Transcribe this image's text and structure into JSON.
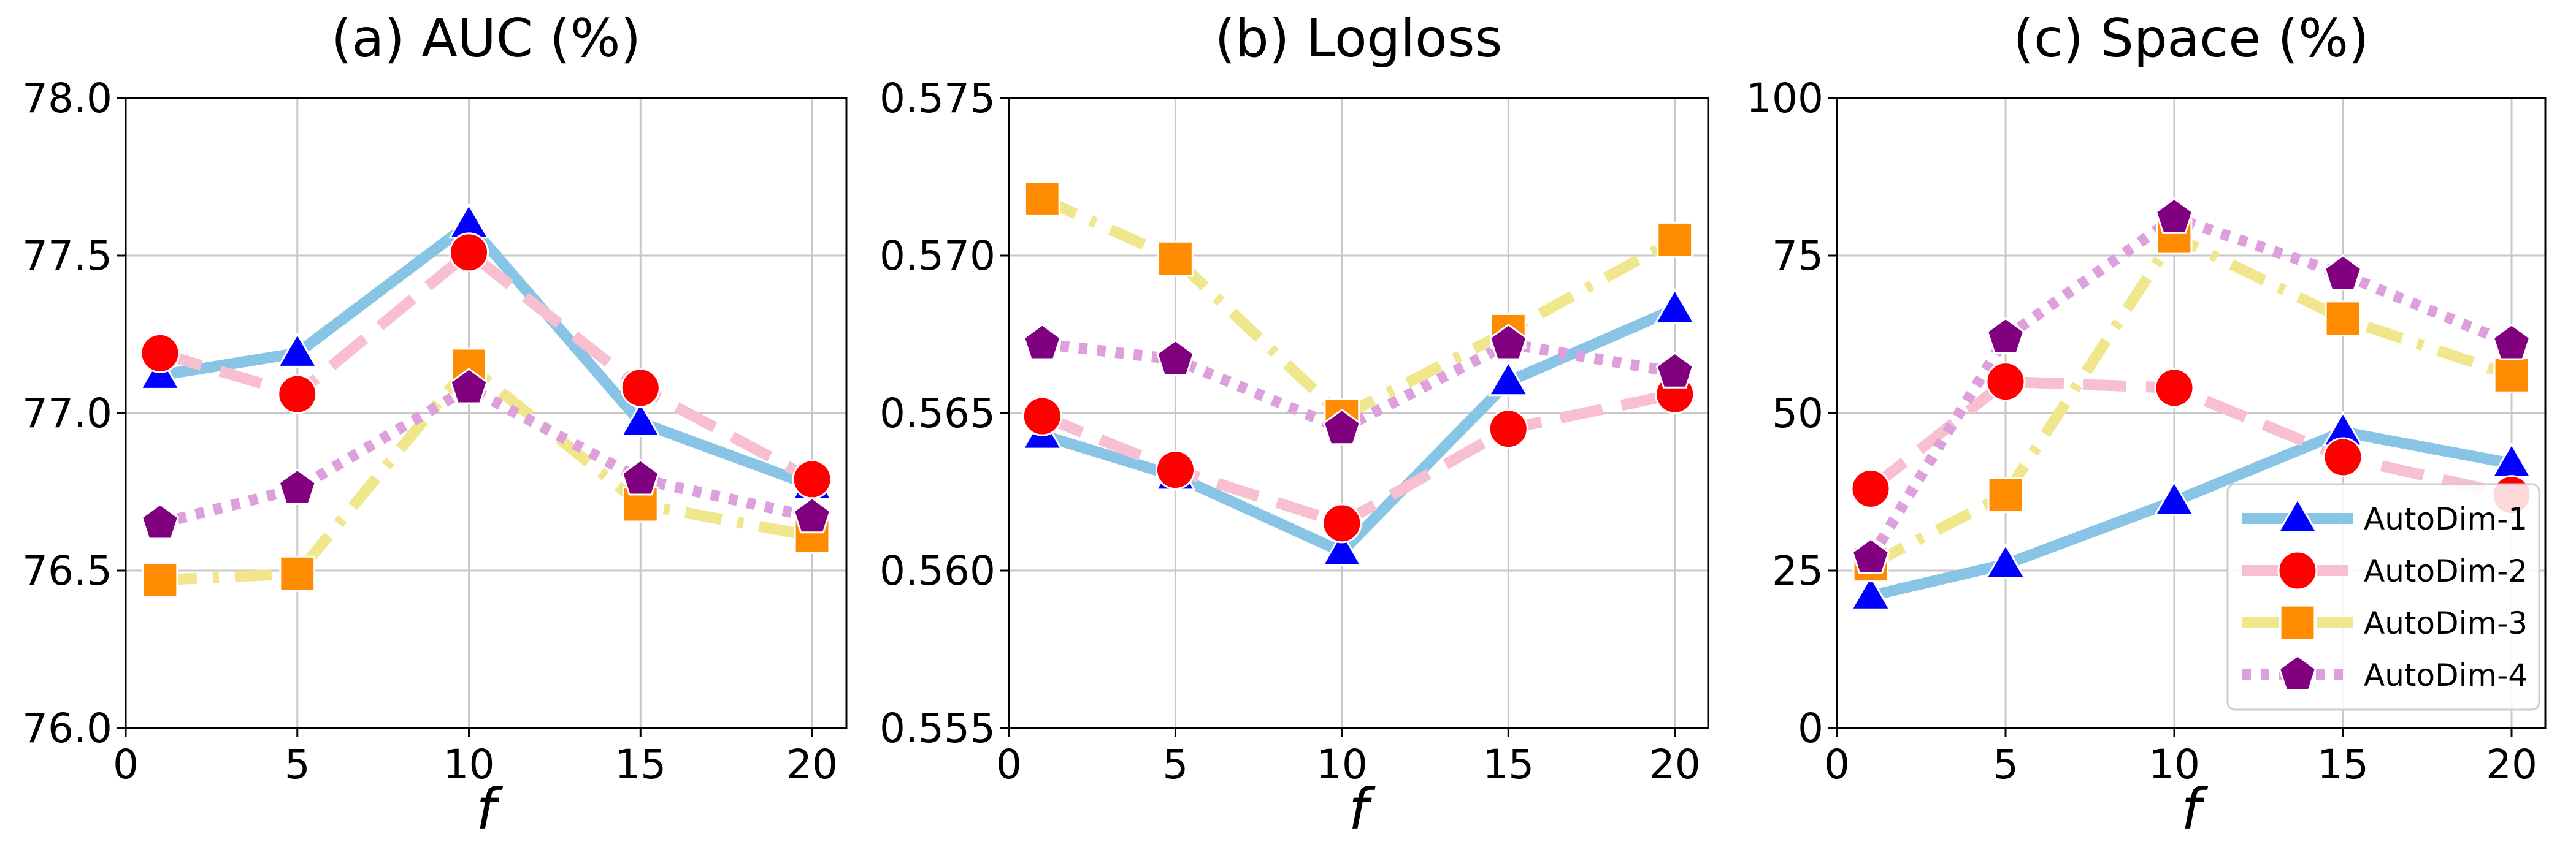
{
  "chart_data": [
    {
      "type": "line",
      "title": "(a) AUC (%)",
      "xlabel": "f",
      "ylabel": "",
      "x": [
        1,
        5,
        10,
        15,
        20
      ],
      "xlim": [
        0,
        21
      ],
      "ylim": [
        76.0,
        78.0
      ],
      "xticks": [
        0,
        5,
        10,
        15,
        20
      ],
      "yticks": [
        76.0,
        76.5,
        77.0,
        77.5,
        78.0
      ],
      "ytick_decimals": 1,
      "grid": true,
      "legend": false,
      "series": [
        {
          "name": "AutoDim-1",
          "values": [
            77.12,
            77.19,
            77.6,
            76.97,
            76.77
          ]
        },
        {
          "name": "AutoDim-2",
          "values": [
            77.19,
            77.06,
            77.51,
            77.08,
            76.79
          ]
        },
        {
          "name": "AutoDim-3",
          "values": [
            76.47,
            76.49,
            77.15,
            76.71,
            76.61
          ]
        },
        {
          "name": "AutoDim-4",
          "values": [
            76.65,
            76.76,
            77.08,
            76.79,
            76.67
          ]
        }
      ]
    },
    {
      "type": "line",
      "title": "(b) Logloss",
      "xlabel": "f",
      "ylabel": "",
      "x": [
        1,
        5,
        10,
        15,
        20
      ],
      "xlim": [
        0,
        21
      ],
      "ylim": [
        0.555,
        0.575
      ],
      "xticks": [
        0,
        5,
        10,
        15,
        20
      ],
      "yticks": [
        0.555,
        0.56,
        0.565,
        0.57,
        0.575
      ],
      "ytick_decimals": 3,
      "grid": true,
      "legend": false,
      "series": [
        {
          "name": "AutoDim-1",
          "values": [
            0.5643,
            0.563,
            0.5606,
            0.566,
            0.5683
          ]
        },
        {
          "name": "AutoDim-2",
          "values": [
            0.5649,
            0.5632,
            0.5615,
            0.5645,
            0.5656
          ]
        },
        {
          "name": "AutoDim-3",
          "values": [
            0.5718,
            0.5699,
            0.5649,
            0.5676,
            0.5705
          ]
        },
        {
          "name": "AutoDim-4",
          "values": [
            0.5672,
            0.5667,
            0.5645,
            0.5672,
            0.5663
          ]
        }
      ]
    },
    {
      "type": "line",
      "title": "(c) Space (%)",
      "xlabel": "f",
      "ylabel": "",
      "x": [
        1,
        5,
        10,
        15,
        20
      ],
      "xlim": [
        0,
        21
      ],
      "ylim": [
        0,
        100
      ],
      "xticks": [
        0,
        5,
        10,
        15,
        20
      ],
      "yticks": [
        0,
        25,
        50,
        75,
        100
      ],
      "ytick_decimals": 0,
      "grid": true,
      "legend": true,
      "legend_position": "lower-right",
      "series": [
        {
          "name": "AutoDim-1",
          "values": [
            21,
            26,
            36,
            47,
            42
          ]
        },
        {
          "name": "AutoDim-2",
          "values": [
            38,
            55,
            54,
            43,
            37
          ]
        },
        {
          "name": "AutoDim-3",
          "values": [
            26,
            37,
            78,
            65,
            56
          ]
        },
        {
          "name": "AutoDim-4",
          "values": [
            27,
            62,
            81,
            72,
            61
          ]
        }
      ]
    }
  ],
  "series_styles": [
    {
      "name": "AutoDim-1",
      "line_color": "#87c4e6",
      "marker_color": "#0000ff",
      "marker": "triangle-icon",
      "dash": "solid"
    },
    {
      "name": "AutoDim-2",
      "line_color": "#f7bfcf",
      "marker_color": "#ff0000",
      "marker": "circle-icon",
      "dash": "dashed"
    },
    {
      "name": "AutoDim-3",
      "line_color": "#f0e68c",
      "marker_color": "#ff8c00",
      "marker": "square-icon",
      "dash": "dashdot"
    },
    {
      "name": "AutoDim-4",
      "line_color": "#dda0dd",
      "marker_color": "#800080",
      "marker": "pentagon-icon",
      "dash": "dotted"
    }
  ]
}
